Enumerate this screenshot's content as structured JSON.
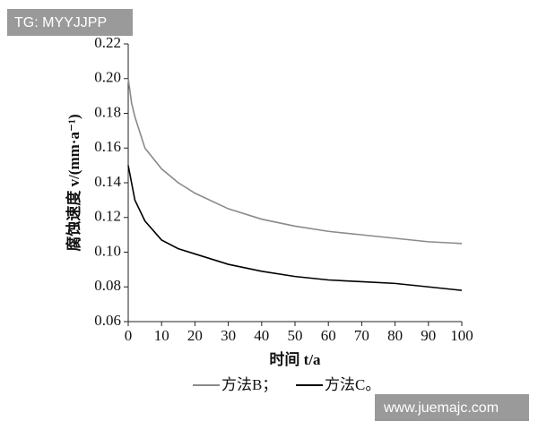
{
  "chart_data": {
    "type": "line",
    "xlabel": "时间 t/a",
    "ylabel": "腐蚀速度 v/(mm·a⁻¹)",
    "x": [
      0,
      1,
      2,
      5,
      10,
      15,
      20,
      30,
      40,
      50,
      60,
      70,
      80,
      90,
      100
    ],
    "series": [
      {
        "name": "方法B；",
        "color": "#8a8a8a",
        "values": [
          0.2,
          0.186,
          0.178,
          0.16,
          0.148,
          0.14,
          0.134,
          0.125,
          0.119,
          0.115,
          0.112,
          0.11,
          0.108,
          0.106,
          0.105
        ]
      },
      {
        "name": "方法C。",
        "color": "#000000",
        "values": [
          0.15,
          0.14,
          0.13,
          0.118,
          0.107,
          0.102,
          0.099,
          0.093,
          0.089,
          0.086,
          0.084,
          0.083,
          0.082,
          0.08,
          0.078
        ]
      }
    ],
    "xlim": [
      0,
      100
    ],
    "xticks": [
      0,
      10,
      20,
      30,
      40,
      50,
      60,
      70,
      80,
      90,
      100
    ],
    "ylim": [
      0.06,
      0.22
    ],
    "yticks": [
      0.06,
      0.08,
      {
        "value": 0.1,
        "label": "0.10"
      },
      0.12,
      0.14,
      0.16,
      0.18,
      {
        "value": 0.2,
        "label": "0.20"
      },
      0.22
    ]
  },
  "watermarks": [
    "TG: MYYJJPP",
    "www.juemajc.com"
  ]
}
